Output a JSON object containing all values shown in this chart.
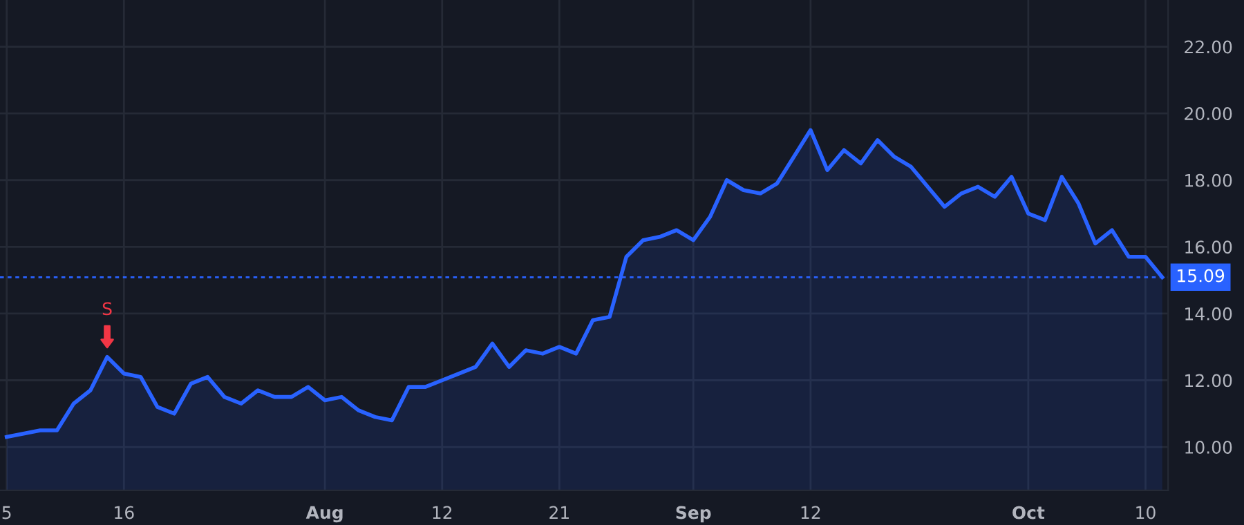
{
  "chart_data": {
    "type": "area",
    "categories": [
      "5",
      null,
      null,
      null,
      null,
      null,
      null,
      "16",
      null,
      null,
      null,
      null,
      null,
      null,
      null,
      null,
      null,
      null,
      null,
      "Aug",
      null,
      null,
      null,
      null,
      null,
      null,
      "12",
      null,
      null,
      null,
      null,
      null,
      null,
      "21",
      null,
      null,
      null,
      null,
      null,
      null,
      null,
      "Sep",
      null,
      null,
      null,
      null,
      null,
      null,
      "12",
      null,
      null,
      null,
      null,
      null,
      null,
      null,
      null,
      null,
      null,
      null,
      null,
      "Oct",
      null,
      null,
      null,
      null,
      null,
      null,
      "10",
      null
    ],
    "series": [
      {
        "color": "#2962ff",
        "values": [
          10.3,
          10.4,
          10.5,
          10.5,
          11.3,
          11.7,
          12.7,
          12.2,
          12.1,
          11.2,
          11.0,
          11.9,
          12.1,
          11.5,
          11.3,
          11.7,
          11.5,
          11.5,
          11.8,
          11.4,
          11.5,
          11.1,
          10.9,
          10.8,
          11.8,
          11.8,
          12.0,
          12.2,
          12.4,
          13.1,
          12.4,
          12.9,
          12.8,
          13.0,
          12.8,
          13.8,
          13.9,
          15.7,
          16.2,
          16.3,
          16.5,
          16.2,
          16.9,
          18.0,
          17.7,
          17.6,
          17.9,
          18.7,
          19.5,
          18.3,
          18.9,
          18.5,
          19.2,
          18.7,
          18.4,
          17.8,
          17.2,
          17.6,
          17.8,
          17.5,
          18.1,
          17.0,
          16.8,
          18.1,
          17.3,
          16.1,
          16.5,
          15.7,
          15.7,
          15.09
        ]
      }
    ],
    "ylim": [
      8.7,
      23.4
    ],
    "yticks": [
      {
        "value": 10,
        "label": "10.00"
      },
      {
        "value": 12,
        "label": "12.00"
      },
      {
        "value": 14,
        "label": "14.00"
      },
      {
        "value": 16,
        "label": "16.00"
      },
      {
        "value": 18,
        "label": "18.00"
      },
      {
        "value": 20,
        "label": "20.00"
      },
      {
        "value": 22,
        "label": "22.00"
      }
    ],
    "ref_lines": [
      {
        "axis": "y",
        "value": 15.09,
        "label": "15.09",
        "color": "#2962ff",
        "line_style": "dotted"
      }
    ],
    "annotations": [
      {
        "text": "S",
        "y": 12.7
      }
    ],
    "grid": true
  }
}
